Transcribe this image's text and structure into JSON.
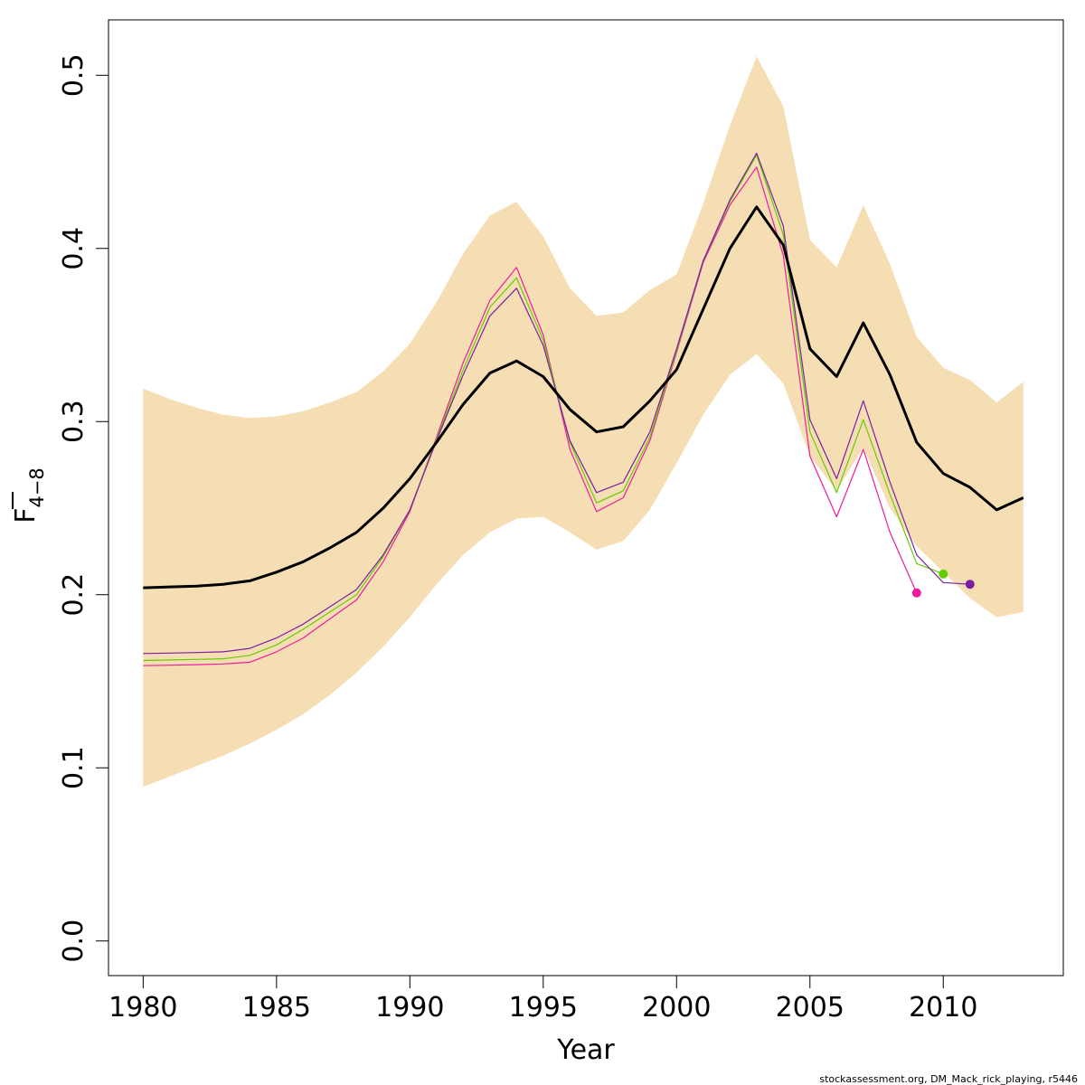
{
  "chart_data": {
    "type": "line",
    "xlabel": "Year",
    "ylabel_main": "F",
    "ylabel_sub": "4−8",
    "xlim": [
      1978.7,
      2014.5
    ],
    "ylim": [
      -0.02,
      0.532
    ],
    "xticks": [
      1980,
      1985,
      1990,
      1995,
      2000,
      2005,
      2010
    ],
    "yticks": [
      "0.0",
      "0.1",
      "0.2",
      "0.3",
      "0.4",
      "0.5"
    ],
    "grid": false,
    "legend": "none",
    "credit": "stockassessment.org, DM_Mack_rick_playing, r5446",
    "colors": {
      "band": "#F5DEB3",
      "main": "#000000",
      "peel_2011": "#7B1FA2",
      "peel_2010": "#66CC00",
      "peel_2009": "#EE1C9C"
    },
    "band": {
      "x": [
        1980,
        1981,
        1982,
        1983,
        1984,
        1985,
        1986,
        1987,
        1988,
        1989,
        1990,
        1991,
        1992,
        1993,
        1994,
        1995,
        1996,
        1997,
        1998,
        1999,
        2000,
        2001,
        2002,
        2003,
        2004,
        2005,
        2006,
        2007,
        2008,
        2009,
        2010,
        2011,
        2012,
        2013
      ],
      "upper": [
        0.319,
        0.313,
        0.308,
        0.304,
        0.302,
        0.303,
        0.306,
        0.311,
        0.317,
        0.329,
        0.345,
        0.369,
        0.397,
        0.419,
        0.427,
        0.407,
        0.377,
        0.361,
        0.363,
        0.376,
        0.385,
        0.426,
        0.471,
        0.511,
        0.482,
        0.405,
        0.389,
        0.425,
        0.391,
        0.349,
        0.331,
        0.324,
        0.311,
        0.323
      ],
      "lower": [
        0.089,
        0.095,
        0.101,
        0.107,
        0.114,
        0.122,
        0.131,
        0.142,
        0.155,
        0.17,
        0.187,
        0.206,
        0.223,
        0.236,
        0.244,
        0.245,
        0.236,
        0.226,
        0.231,
        0.249,
        0.276,
        0.304,
        0.327,
        0.339,
        0.322,
        0.28,
        0.26,
        0.285,
        0.25,
        0.228,
        0.213,
        0.198,
        0.187,
        0.19
      ]
    },
    "series": [
      {
        "color": "#000000",
        "width": 3,
        "x": [
          1980,
          1981,
          1982,
          1983,
          1984,
          1985,
          1986,
          1987,
          1988,
          1989,
          1990,
          1991,
          1992,
          1993,
          1994,
          1995,
          1996,
          1997,
          1998,
          1999,
          2000,
          2001,
          2002,
          2003,
          2004,
          2005,
          2006,
          2007,
          2008,
          2009,
          2010,
          2011,
          2012,
          2013
        ],
        "values": [
          0.204,
          0.2045,
          0.205,
          0.206,
          0.208,
          0.213,
          0.219,
          0.227,
          0.236,
          0.25,
          0.267,
          0.288,
          0.31,
          0.328,
          0.335,
          0.326,
          0.307,
          0.294,
          0.297,
          0.312,
          0.33,
          0.365,
          0.4,
          0.424,
          0.402,
          0.342,
          0.326,
          0.357,
          0.327,
          0.288,
          0.27,
          0.262,
          0.249,
          0.256
        ]
      },
      {
        "color": "#7B1FA2",
        "width": 1.2,
        "x": [
          1980,
          1981,
          1982,
          1983,
          1984,
          1985,
          1986,
          1987,
          1988,
          1989,
          1990,
          1991,
          1992,
          1993,
          1994,
          1995,
          1996,
          1997,
          1998,
          1999,
          2000,
          2001,
          2002,
          2003,
          2004,
          2005,
          2006,
          2007,
          2008,
          2009,
          2010,
          2011
        ],
        "values": [
          0.166,
          0.1663,
          0.1666,
          0.167,
          0.169,
          0.175,
          0.183,
          0.193,
          0.203,
          0.223,
          0.249,
          0.289,
          0.327,
          0.361,
          0.377,
          0.344,
          0.289,
          0.259,
          0.265,
          0.294,
          0.342,
          0.393,
          0.428,
          0.455,
          0.413,
          0.301,
          0.267,
          0.312,
          0.265,
          0.223,
          0.207,
          0.206
        ]
      },
      {
        "color": "#66CC00",
        "width": 1.2,
        "x": [
          1980,
          1981,
          1982,
          1983,
          1984,
          1985,
          1986,
          1987,
          1988,
          1989,
          1990,
          1991,
          1992,
          1993,
          1994,
          1995,
          1996,
          1997,
          1998,
          1999,
          2000,
          2001,
          2002,
          2003,
          2004,
          2005,
          2006,
          2007,
          2008,
          2009,
          2010
        ],
        "values": [
          0.162,
          0.1623,
          0.1626,
          0.163,
          0.165,
          0.171,
          0.18,
          0.19,
          0.2,
          0.222,
          0.249,
          0.29,
          0.33,
          0.366,
          0.383,
          0.347,
          0.288,
          0.253,
          0.26,
          0.291,
          0.341,
          0.393,
          0.427,
          0.454,
          0.408,
          0.294,
          0.259,
          0.301,
          0.258,
          0.218,
          0.212
        ]
      },
      {
        "color": "#EE1C9C",
        "width": 1.2,
        "x": [
          1980,
          1981,
          1982,
          1983,
          1984,
          1985,
          1986,
          1987,
          1988,
          1989,
          1990,
          1991,
          1992,
          1993,
          1994,
          1995,
          1996,
          1997,
          1998,
          1999,
          2000,
          2001,
          2002,
          2003,
          2004,
          2005,
          2006,
          2007,
          2008,
          2009
        ],
        "values": [
          0.159,
          0.1593,
          0.1596,
          0.16,
          0.161,
          0.167,
          0.175,
          0.186,
          0.197,
          0.219,
          0.248,
          0.291,
          0.334,
          0.37,
          0.389,
          0.35,
          0.284,
          0.248,
          0.256,
          0.289,
          0.34,
          0.392,
          0.425,
          0.447,
          0.396,
          0.28,
          0.245,
          0.284,
          0.236,
          0.201
        ]
      }
    ],
    "endpoints": [
      {
        "x": 2009,
        "y": 0.201,
        "color": "#EE1C9C"
      },
      {
        "x": 2010,
        "y": 0.212,
        "color": "#66CC00"
      },
      {
        "x": 2011,
        "y": 0.206,
        "color": "#7B1FA2"
      }
    ]
  }
}
